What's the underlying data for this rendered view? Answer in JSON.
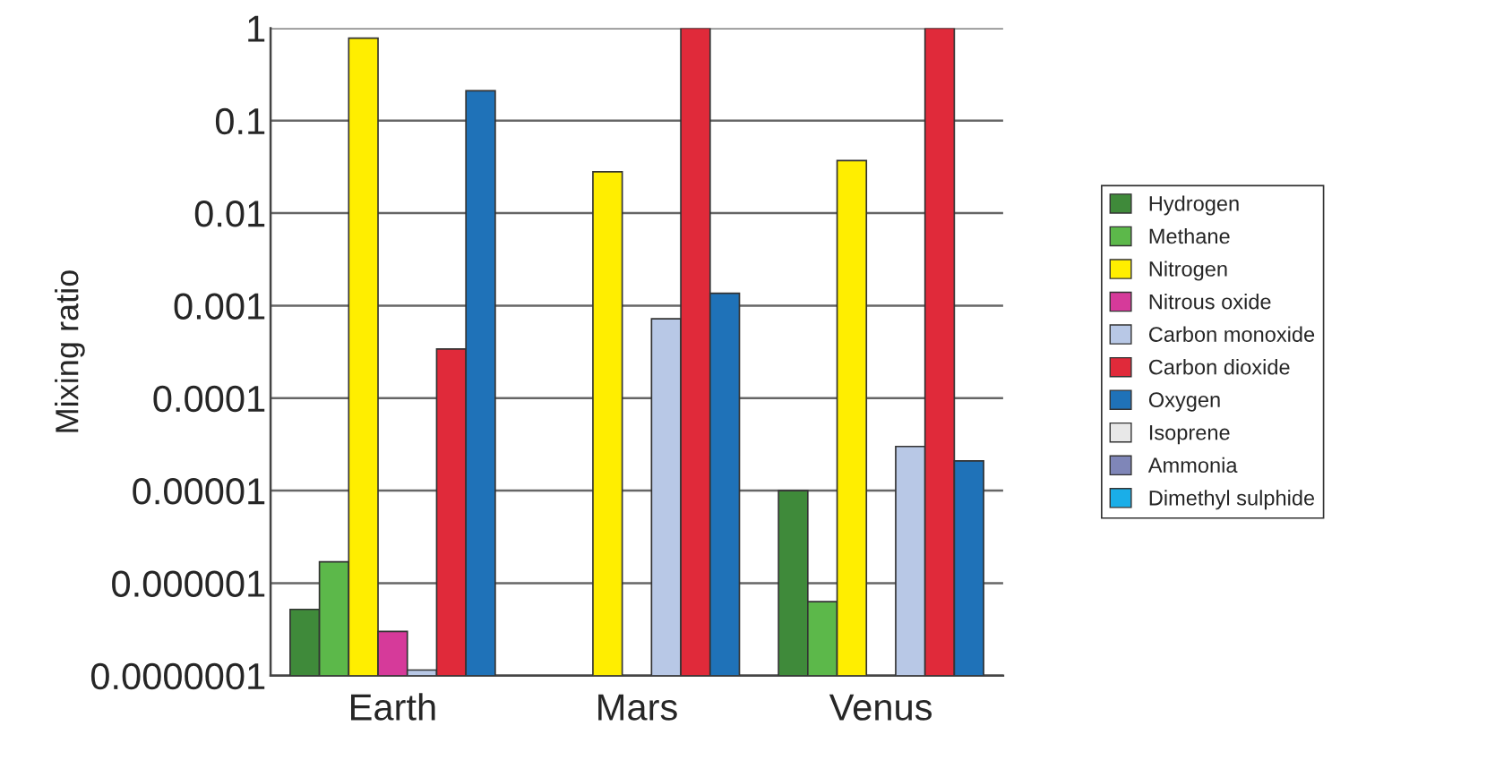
{
  "chart_data": {
    "type": "bar",
    "ylabel": "Mixing ratio",
    "categories": [
      "Earth",
      "Mars",
      "Venus"
    ],
    "series": [
      {
        "name": "Hydrogen",
        "color": "#3f8a3a",
        "values": [
          5.2e-07,
          null,
          1e-05
        ]
      },
      {
        "name": "Methane",
        "color": "#5cb84a",
        "values": [
          1.7e-06,
          null,
          6.3e-07
        ]
      },
      {
        "name": "Nitrogen",
        "color": "#ffee00",
        "values": [
          0.78,
          0.028,
          0.037
        ]
      },
      {
        "name": "Nitrous oxide",
        "color": "#d63a9a",
        "values": [
          3e-07,
          null,
          null
        ]
      },
      {
        "name": "Carbon monoxide",
        "color": "#b8c8e6",
        "values": [
          1.15e-07,
          0.00072,
          3e-05
        ]
      },
      {
        "name": "Carbon dioxide",
        "color": "#e02a3a",
        "values": [
          0.00034,
          1.0,
          1.0
        ]
      },
      {
        "name": "Oxygen",
        "color": "#1f72b8",
        "values": [
          0.21,
          0.00136,
          2.1e-05
        ]
      },
      {
        "name": "Isoprene",
        "color": "#e8e8e8",
        "values": [
          null,
          null,
          null
        ]
      },
      {
        "name": "Ammonia",
        "color": "#7f86b8",
        "values": [
          null,
          null,
          null
        ]
      },
      {
        "name": "Dimethyl sulphide",
        "color": "#1aaee8",
        "values": [
          null,
          null,
          null
        ]
      }
    ],
    "log": true,
    "ylim": [
      1e-07,
      1
    ],
    "yticks": [
      {
        "value": 1e-07,
        "label": "0.0000001"
      },
      {
        "value": 1e-06,
        "label": "0.000001"
      },
      {
        "value": 1e-05,
        "label": "0.00001"
      },
      {
        "value": 0.0001,
        "label": "0.0001"
      },
      {
        "value": 0.001,
        "label": "0.001"
      },
      {
        "value": 0.01,
        "label": "0.01"
      },
      {
        "value": 0.1,
        "label": "0.1"
      },
      1
    ],
    "grid": "y",
    "legend": "right"
  }
}
